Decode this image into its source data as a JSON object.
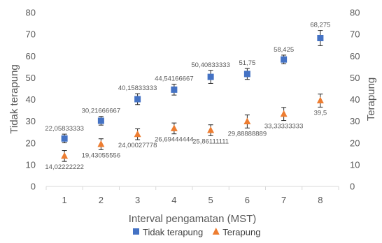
{
  "chart_data": {
    "type": "scatter",
    "categories": [
      "1",
      "2",
      "3",
      "4",
      "5",
      "6",
      "7",
      "8"
    ],
    "xlabel": "Interval pengamatan (MST)",
    "ylabel_left": "Tidak terapung",
    "ylabel_right": "Terapung",
    "ylim": [
      0,
      80
    ],
    "yticks": [
      "0",
      "10",
      "20",
      "30",
      "40",
      "50",
      "60",
      "70",
      "80"
    ],
    "grid": false,
    "legend_position": "bottom",
    "series": [
      {
        "name": "Tidak terapung",
        "marker": "square",
        "color": "#4472C4",
        "axis": "left",
        "values": [
          22.05833333,
          30.21666667,
          40.15833333,
          44.54166667,
          50.40833333,
          51.75,
          58.425,
          68.275
        ],
        "errors": [
          2.0,
          2.0,
          2.5,
          2.5,
          3.0,
          2.5,
          2.0,
          3.5
        ],
        "labels": [
          "22,05833333",
          "30,21666667",
          "40,15833333",
          "44,54166667",
          "50,40833333",
          "51,75",
          "58,425",
          "68,275"
        ]
      },
      {
        "name": "Terapung",
        "marker": "triangle",
        "color": "#ED7D31",
        "axis": "right",
        "values": [
          14.02222222,
          19.43055556,
          24.00027778,
          26.69444444,
          25.86111111,
          29.88888889,
          33.33333333,
          39.5
        ],
        "errors": [
          2.5,
          2.5,
          2.5,
          2.5,
          2.5,
          3.0,
          3.0,
          3.0
        ],
        "labels": [
          "14,02222222",
          "19,43055556",
          "24,00027778",
          "26,69444444",
          "25,86111111",
          "29,88888889",
          "33,33333333",
          "39,5"
        ]
      }
    ]
  }
}
